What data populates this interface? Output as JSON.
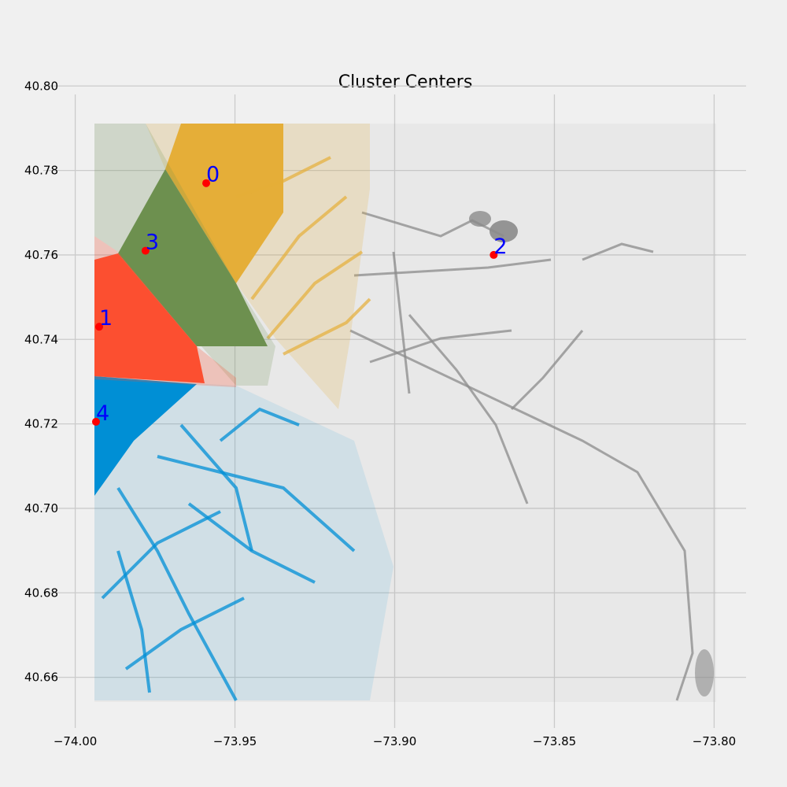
{
  "chart_data": {
    "type": "scatter",
    "title": "Cluster Centers",
    "xlabel": "",
    "ylabel": "",
    "xlim": [
      -74.01,
      -73.79
    ],
    "ylim": [
      40.648,
      40.798
    ],
    "xticks": [
      -74.0,
      -73.95,
      -73.9,
      -73.85,
      -73.8
    ],
    "xtick_labels": [
      "−74.00",
      "−73.95",
      "−73.90",
      "−73.85",
      "−73.80"
    ],
    "yticks": [
      40.66,
      40.68,
      40.7,
      40.72,
      40.74,
      40.76,
      40.78,
      40.8
    ],
    "ytick_labels": [
      "40.66",
      "40.68",
      "40.70",
      "40.72",
      "40.74",
      "40.76",
      "40.78",
      "40.80"
    ],
    "grid": true,
    "centers": [
      {
        "label": "0",
        "x": -73.959,
        "y": 40.777
      },
      {
        "label": "1",
        "x": -73.9925,
        "y": 40.743
      },
      {
        "label": "2",
        "x": -73.869,
        "y": 40.76
      },
      {
        "label": "3",
        "x": -73.978,
        "y": 40.761
      },
      {
        "label": "4",
        "x": -73.9935,
        "y": 40.7205
      }
    ],
    "cluster_colors": {
      "0": "#e5ae38",
      "1": "#fc4f30",
      "2": "#8b8b8b",
      "3": "#6d904f",
      "4": "#008fd5"
    },
    "center_marker_color": "#ff0000",
    "center_label_color": "#0000ff",
    "background_color": "#f0f0f0",
    "grid_color": "#cbcbcb"
  }
}
